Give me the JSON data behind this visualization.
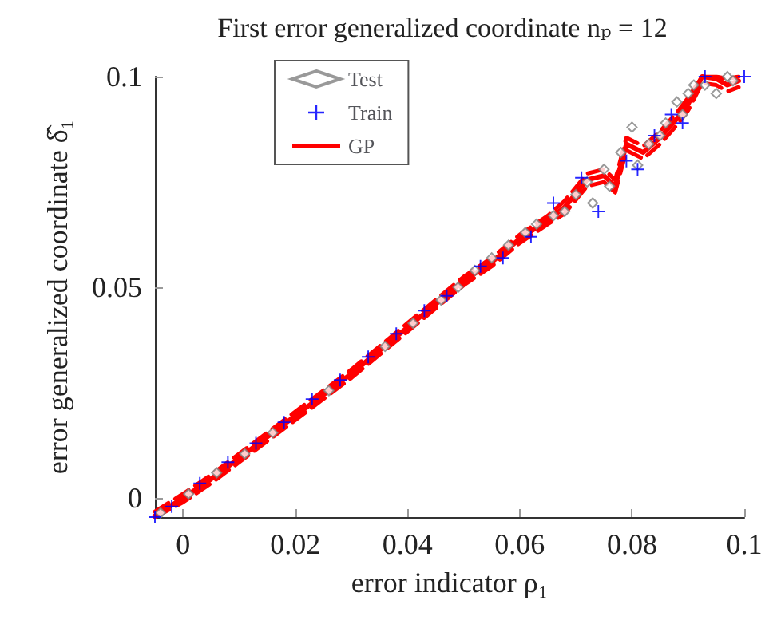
{
  "chart_data": {
    "type": "scatter",
    "title": "First error generalized coordinate nₚ = 12",
    "xlabel": "error indicator ρ₁",
    "ylabel": "error generalized coordinate δ̂₁",
    "xlim": [
      -0.005,
      0.1
    ],
    "ylim": [
      -0.0045,
      0.1
    ],
    "xticks": [
      0,
      0.02,
      0.04,
      0.06,
      0.08,
      0.1
    ],
    "yticks": [
      0,
      0.05,
      0.1
    ],
    "grid": false,
    "legend": "top left",
    "series": [
      {
        "name": "Test",
        "marker": "diamond",
        "color": "#808080",
        "x": [
          -0.004,
          0.001,
          0.006,
          0.011,
          0.016,
          0.026,
          0.036,
          0.041,
          0.046,
          0.049,
          0.052,
          0.055,
          0.058,
          0.061,
          0.063,
          0.066,
          0.068,
          0.07,
          0.072,
          0.073,
          0.075,
          0.076,
          0.078,
          0.08,
          0.081,
          0.083,
          0.085,
          0.086,
          0.088,
          0.089,
          0.09,
          0.091,
          0.093,
          0.095,
          0.097,
          0.098
        ],
        "values": [
          -0.0035,
          0.001,
          0.006,
          0.0105,
          0.0155,
          0.0255,
          0.036,
          0.0415,
          0.047,
          0.05,
          0.054,
          0.057,
          0.06,
          0.063,
          0.065,
          0.067,
          0.068,
          0.072,
          0.075,
          0.07,
          0.078,
          0.074,
          0.082,
          0.088,
          0.079,
          0.084,
          0.086,
          0.089,
          0.094,
          0.091,
          0.096,
          0.098,
          0.098,
          0.096,
          0.1,
          0.099
        ]
      },
      {
        "name": "Train",
        "marker": "cross",
        "color": "#0000ff",
        "x": [
          -0.005,
          -0.002,
          0.003,
          0.008,
          0.013,
          0.018,
          0.023,
          0.028,
          0.033,
          0.038,
          0.043,
          0.047,
          0.053,
          0.057,
          0.062,
          0.066,
          0.071,
          0.074,
          0.079,
          0.081,
          0.084,
          0.087,
          0.089,
          0.093,
          0.1
        ],
        "values": [
          -0.0045,
          -0.002,
          0.0035,
          0.0085,
          0.013,
          0.018,
          0.0235,
          0.028,
          0.0335,
          0.039,
          0.0445,
          0.048,
          0.055,
          0.057,
          0.062,
          0.07,
          0.076,
          0.068,
          0.08,
          0.078,
          0.086,
          0.091,
          0.089,
          0.1,
          0.1
        ]
      },
      {
        "name": "GP",
        "type": "line",
        "line_style": "solid",
        "marker": "none",
        "color": "#ff0000",
        "x": [
          -0.005,
          0,
          0.005,
          0.01,
          0.015,
          0.02,
          0.025,
          0.03,
          0.035,
          0.04,
          0.045,
          0.05,
          0.055,
          0.06,
          0.065,
          0.068,
          0.072,
          0.075,
          0.077,
          0.079,
          0.082,
          0.085,
          0.088,
          0.09,
          0.0925,
          0.095,
          0.097,
          0.099
        ],
        "values": [
          -0.0042,
          0.0,
          0.0045,
          0.0095,
          0.0145,
          0.0195,
          0.0245,
          0.0295,
          0.035,
          0.0405,
          0.046,
          0.0515,
          0.056,
          0.0615,
          0.066,
          0.069,
          0.0755,
          0.0765,
          0.074,
          0.084,
          0.082,
          0.0855,
          0.09,
          0.0935,
          0.1,
          0.0995,
          0.098,
          0.099
        ]
      },
      {
        "type": "line",
        "line_style": "dashed",
        "marker": "none",
        "color": "#ff0000",
        "x": [
          -0.005,
          0,
          0.005,
          0.01,
          0.015,
          0.02,
          0.025,
          0.03,
          0.035,
          0.04,
          0.045,
          0.05,
          0.055,
          0.06,
          0.065,
          0.068,
          0.072,
          0.075,
          0.077,
          0.079,
          0.082,
          0.085,
          0.088,
          0.09,
          0.0925,
          0.095,
          0.097,
          0.099
        ],
        "values": [
          -0.0045,
          -0.001,
          0.0035,
          0.0085,
          0.0135,
          0.0185,
          0.0235,
          0.0285,
          0.034,
          0.0395,
          0.045,
          0.0505,
          0.055,
          0.0605,
          0.065,
          0.0675,
          0.074,
          0.075,
          0.0725,
          0.0825,
          0.0805,
          0.084,
          0.0885,
          0.092,
          0.0985,
          0.098,
          0.0965,
          0.0975
        ]
      },
      {
        "type": "line",
        "line_style": "dashed",
        "marker": "none",
        "color": "#ff0000",
        "x": [
          -0.005,
          0,
          0.005,
          0.01,
          0.015,
          0.02,
          0.025,
          0.03,
          0.035,
          0.04,
          0.045,
          0.05,
          0.055,
          0.06,
          0.065,
          0.068,
          0.072,
          0.075,
          0.077,
          0.079,
          0.082,
          0.085,
          0.088,
          0.09,
          0.0925,
          0.095,
          0.097,
          0.099
        ],
        "values": [
          -0.0032,
          0.001,
          0.0055,
          0.0105,
          0.0155,
          0.0205,
          0.0255,
          0.0305,
          0.036,
          0.0415,
          0.047,
          0.0525,
          0.057,
          0.0625,
          0.067,
          0.0705,
          0.077,
          0.078,
          0.0755,
          0.0855,
          0.0835,
          0.087,
          0.0915,
          0.095,
          0.1,
          0.1,
          0.0995,
          0.1
        ]
      }
    ]
  }
}
